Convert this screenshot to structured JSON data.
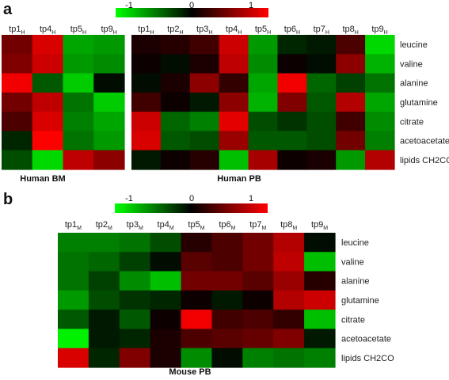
{
  "panels": {
    "a": "a",
    "b": "b"
  },
  "colorbar": {
    "ticks": [
      "-1",
      "0",
      "1"
    ],
    "low_color": "#00ff00",
    "mid_color": "#000000",
    "high_color": "#ff0000"
  },
  "chart_data": [
    {
      "type": "heatmap",
      "title": "Human BM",
      "columns": [
        {
          "base": "tp1",
          "sub": "H"
        },
        {
          "base": "tp4",
          "sub": "H"
        },
        {
          "base": "tp5",
          "sub": "H"
        },
        {
          "base": "tp9",
          "sub": "H"
        }
      ],
      "rows": [
        "leucine",
        "valine",
        "alanine",
        "glutamine",
        "citrate",
        "acetoacetate",
        "lipids CH2CO"
      ],
      "values": [
        [
          0.45,
          0.85,
          -0.65,
          -0.6
        ],
        [
          0.5,
          0.8,
          -0.6,
          -0.55
        ],
        [
          0.95,
          -0.35,
          -0.8,
          -0.05
        ],
        [
          0.45,
          0.75,
          -0.45,
          -0.8
        ],
        [
          0.3,
          0.85,
          -0.5,
          -0.65
        ],
        [
          -0.15,
          1.0,
          -0.45,
          -0.6
        ],
        [
          -0.3,
          -0.85,
          0.75,
          0.55
        ]
      ],
      "vmin": -1,
      "vmax": 1
    },
    {
      "type": "heatmap",
      "title": "Human PB",
      "columns": [
        {
          "base": "tp1",
          "sub": "H"
        },
        {
          "base": "tp2",
          "sub": "H"
        },
        {
          "base": "tp3",
          "sub": "H"
        },
        {
          "base": "tp4",
          "sub": "H"
        },
        {
          "base": "tp5",
          "sub": "H"
        },
        {
          "base": "tp6",
          "sub": "H"
        },
        {
          "base": "tp7",
          "sub": "H"
        },
        {
          "base": "tp8",
          "sub": "H"
        },
        {
          "base": "tp9",
          "sub": "H"
        }
      ],
      "rows": [
        "leucine",
        "valine",
        "alanine",
        "glutamine",
        "citrate",
        "acetoacetate",
        "lipids CH2CO"
      ],
      "values": [
        [
          0.1,
          0.15,
          0.25,
          0.8,
          -0.6,
          -0.15,
          -0.1,
          0.3,
          -0.85
        ],
        [
          0.05,
          -0.05,
          0.1,
          0.75,
          -0.55,
          0.05,
          -0.05,
          0.55,
          -0.7
        ],
        [
          -0.05,
          0.1,
          0.55,
          0.2,
          -0.65,
          0.95,
          -0.4,
          -0.25,
          -0.45
        ],
        [
          0.25,
          0.05,
          -0.1,
          0.55,
          -0.7,
          0.5,
          -0.35,
          0.7,
          -0.65
        ],
        [
          0.8,
          -0.4,
          -0.5,
          0.9,
          -0.3,
          -0.2,
          -0.3,
          0.25,
          -0.55
        ],
        [
          0.85,
          -0.35,
          -0.3,
          0.6,
          -0.35,
          -0.35,
          -0.3,
          0.45,
          -0.5
        ],
        [
          -0.1,
          0.05,
          0.15,
          -0.75,
          0.65,
          0.05,
          0.1,
          -0.6,
          0.7
        ]
      ],
      "vmin": -1,
      "vmax": 1
    },
    {
      "type": "heatmap",
      "title": "Mouse PB",
      "columns": [
        {
          "base": "tp1",
          "sub": "M"
        },
        {
          "base": "tp2",
          "sub": "M"
        },
        {
          "base": "tp3",
          "sub": "M"
        },
        {
          "base": "tp4",
          "sub": "M"
        },
        {
          "base": "tp5",
          "sub": "M"
        },
        {
          "base": "tp6",
          "sub": "M"
        },
        {
          "base": "tp7",
          "sub": "M"
        },
        {
          "base": "tp8",
          "sub": "M"
        },
        {
          "base": "tp9",
          "sub": "M"
        }
      ],
      "rows": [
        "leucine",
        "valine",
        "alanine",
        "glutamine",
        "citrate",
        "acetoacetate",
        "lipids CH2CO"
      ],
      "values": [
        [
          -0.5,
          -0.5,
          -0.45,
          -0.3,
          0.15,
          0.3,
          0.45,
          0.7,
          -0.05
        ],
        [
          -0.45,
          -0.4,
          -0.25,
          -0.05,
          0.35,
          0.3,
          0.45,
          0.75,
          -0.75
        ],
        [
          -0.45,
          -0.25,
          -0.55,
          -0.75,
          0.45,
          0.45,
          0.35,
          0.6,
          0.15
        ],
        [
          -0.6,
          -0.3,
          -0.2,
          -0.15,
          0.05,
          -0.1,
          0.05,
          0.7,
          0.8
        ],
        [
          -0.35,
          -0.1,
          -0.35,
          0.05,
          0.95,
          0.25,
          0.3,
          0.2,
          -0.75
        ],
        [
          -0.95,
          -0.1,
          -0.15,
          0.1,
          0.3,
          0.35,
          0.4,
          0.5,
          -0.1
        ],
        [
          0.85,
          -0.15,
          0.5,
          0.1,
          -0.55,
          -0.05,
          -0.5,
          -0.45,
          -0.5
        ]
      ],
      "vmin": -1,
      "vmax": 1
    }
  ]
}
